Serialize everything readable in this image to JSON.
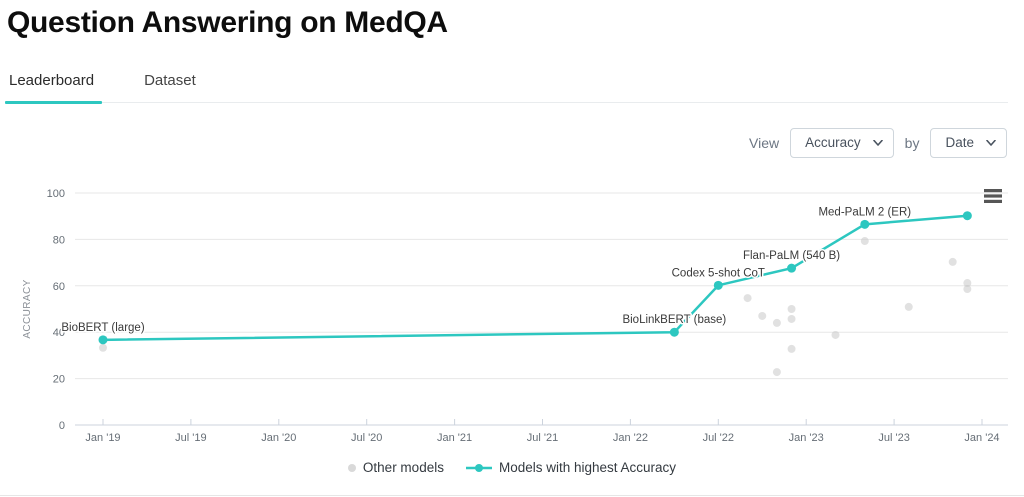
{
  "page": {
    "title": "Question Answering on MedQA"
  },
  "tabs": [
    {
      "label": "Leaderboard",
      "active": true
    },
    {
      "label": "Dataset",
      "active": false
    }
  ],
  "controls": {
    "view_label": "View",
    "metric_value": "Accuracy",
    "by_label": "by",
    "group_value": "Date"
  },
  "icons": {
    "chart_menu": "hamburger-menu-icon",
    "select_arrow": "chevron-down-icon"
  },
  "colors": {
    "accent": "#2dc7c0",
    "other_models": "#c9c9c9",
    "grid": "#e7e7e7",
    "axis": "#ccd3dd",
    "tick_text": "#666e76"
  },
  "chart_data": {
    "type": "line",
    "title": "",
    "xlabel": "",
    "ylabel": "ACCURACY",
    "ylim": [
      0,
      100
    ],
    "y_ticks": [
      0,
      20,
      40,
      60,
      80,
      100
    ],
    "x_ticks": [
      "Jan '19",
      "Jul '19",
      "Jan '20",
      "Jul '20",
      "Jan '21",
      "Jul '21",
      "Jan '22",
      "Jul '22",
      "Jan '23",
      "Jul '23",
      "Jan '24"
    ],
    "x_tick_months": [
      0,
      6,
      12,
      18,
      24,
      30,
      36,
      42,
      48,
      54,
      60
    ],
    "grid": "horizontal",
    "legend_position": "bottom",
    "series": [
      {
        "name": "Other models",
        "type": "scatter",
        "color": "#c9c9c9",
        "points": [
          {
            "date": "2019-01",
            "value": 33.3
          },
          {
            "date": "2022-09",
            "value": 54.7
          },
          {
            "date": "2022-10",
            "value": 47.0
          },
          {
            "date": "2022-11",
            "value": 44.0
          },
          {
            "date": "2022-11",
            "value": 22.8
          },
          {
            "date": "2022-12",
            "value": 50.0
          },
          {
            "date": "2022-12",
            "value": 45.7
          },
          {
            "date": "2022-12",
            "value": 32.8
          },
          {
            "date": "2023-03",
            "value": 38.8
          },
          {
            "date": "2023-05",
            "value": 79.3
          },
          {
            "date": "2023-08",
            "value": 50.9
          },
          {
            "date": "2023-11",
            "value": 70.3
          },
          {
            "date": "2023-12",
            "value": 61.2
          },
          {
            "date": "2023-12",
            "value": 58.6
          }
        ]
      },
      {
        "name": "Models with highest Accuracy",
        "type": "line",
        "color": "#2dc7c0",
        "points": [
          {
            "date": "2019-01",
            "value": 36.7,
            "label": "BioBERT (large)"
          },
          {
            "date": "2022-04",
            "value": 40.0,
            "label": "BioLinkBERT (base)"
          },
          {
            "date": "2022-07",
            "value": 60.2,
            "label": "Codex 5-shot CoT"
          },
          {
            "date": "2022-12",
            "value": 67.6,
            "label": "Flan-PaLM (540 B)"
          },
          {
            "date": "2023-05",
            "value": 86.5,
            "label": "Med-PaLM 2 (ER)"
          },
          {
            "date": "2023-12",
            "value": 90.2,
            "label": ""
          }
        ]
      }
    ]
  }
}
